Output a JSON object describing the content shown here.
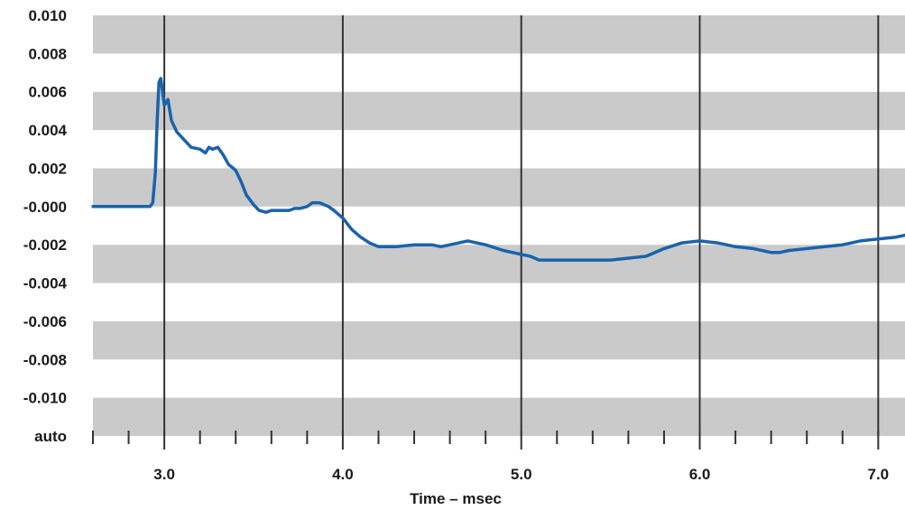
{
  "chart_data": {
    "type": "line",
    "title": "",
    "xlabel": "Time – msec",
    "ylabel": "",
    "xlim": [
      2.6,
      7.15
    ],
    "ylim": [
      -0.012,
      0.01
    ],
    "x_ticks": [
      "3.0",
      "4.0",
      "5.0",
      "6.0",
      "7.0"
    ],
    "x_tick_values": [
      3.0,
      4.0,
      5.0,
      6.0,
      7.0
    ],
    "y_ticks": [
      "0.010",
      "0.008",
      "0.006",
      "0.004",
      "0.002",
      "-0.000",
      "-0.002",
      "-0.004",
      "-0.006",
      "-0.008",
      "-0.010",
      "auto"
    ],
    "y_tick_values": [
      0.01,
      0.008,
      0.006,
      0.004,
      0.002,
      0.0,
      -0.002,
      -0.004,
      -0.006,
      -0.008,
      -0.01,
      -0.012
    ],
    "grid": "vertical lines at major x ticks, alternating horizontal bands",
    "colors": {
      "line": "#1a63ad",
      "band": "#cacaca",
      "grid": "#333333"
    },
    "series": [
      {
        "x": [
          2.6,
          2.8,
          2.92,
          2.935,
          2.95,
          2.96,
          2.97,
          2.98,
          3.0,
          3.02,
          3.04,
          3.07,
          3.1,
          3.15,
          3.2,
          3.23,
          3.25,
          3.27,
          3.3,
          3.33,
          3.36,
          3.4,
          3.43,
          3.46,
          3.5,
          3.53,
          3.57,
          3.6,
          3.63,
          3.65,
          3.67,
          3.7,
          3.73,
          3.76,
          3.8,
          3.83,
          3.87,
          3.92,
          3.95,
          4.0,
          4.05,
          4.1,
          4.15,
          4.2,
          4.3,
          4.4,
          4.5,
          4.55,
          4.6,
          4.65,
          4.7,
          4.8,
          4.9,
          5.0,
          5.05,
          5.1,
          5.2,
          5.3,
          5.4,
          5.5,
          5.6,
          5.7,
          5.8,
          5.9,
          6.0,
          6.1,
          6.2,
          6.3,
          6.4,
          6.45,
          6.5,
          6.6,
          6.7,
          6.8,
          6.9,
          7.0,
          7.1,
          7.15
        ],
        "y": [
          0.0,
          0.0,
          0.0,
          0.0002,
          0.0018,
          0.0045,
          0.0065,
          0.0067,
          0.0053,
          0.0056,
          0.0045,
          0.0039,
          0.0036,
          0.0031,
          0.003,
          0.0028,
          0.0031,
          0.003,
          0.0031,
          0.0027,
          0.0022,
          0.0019,
          0.0013,
          0.0006,
          0.0001,
          -0.0002,
          -0.0003,
          -0.0002,
          -0.0002,
          -0.0002,
          -0.0002,
          -0.0002,
          -0.0001,
          -0.0001,
          0.0,
          0.0002,
          0.0002,
          0.0,
          -0.0002,
          -0.0006,
          -0.0012,
          -0.0016,
          -0.0019,
          -0.0021,
          -0.0021,
          -0.002,
          -0.002,
          -0.0021,
          -0.002,
          -0.0019,
          -0.0018,
          -0.002,
          -0.0023,
          -0.0025,
          -0.0026,
          -0.0028,
          -0.0028,
          -0.0028,
          -0.0028,
          -0.0028,
          -0.0027,
          -0.0026,
          -0.0022,
          -0.0019,
          -0.0018,
          -0.0019,
          -0.0021,
          -0.0022,
          -0.0024,
          -0.0024,
          -0.0023,
          -0.0022,
          -0.0021,
          -0.002,
          -0.0018,
          -0.0017,
          -0.0016,
          -0.0015
        ]
      }
    ]
  }
}
